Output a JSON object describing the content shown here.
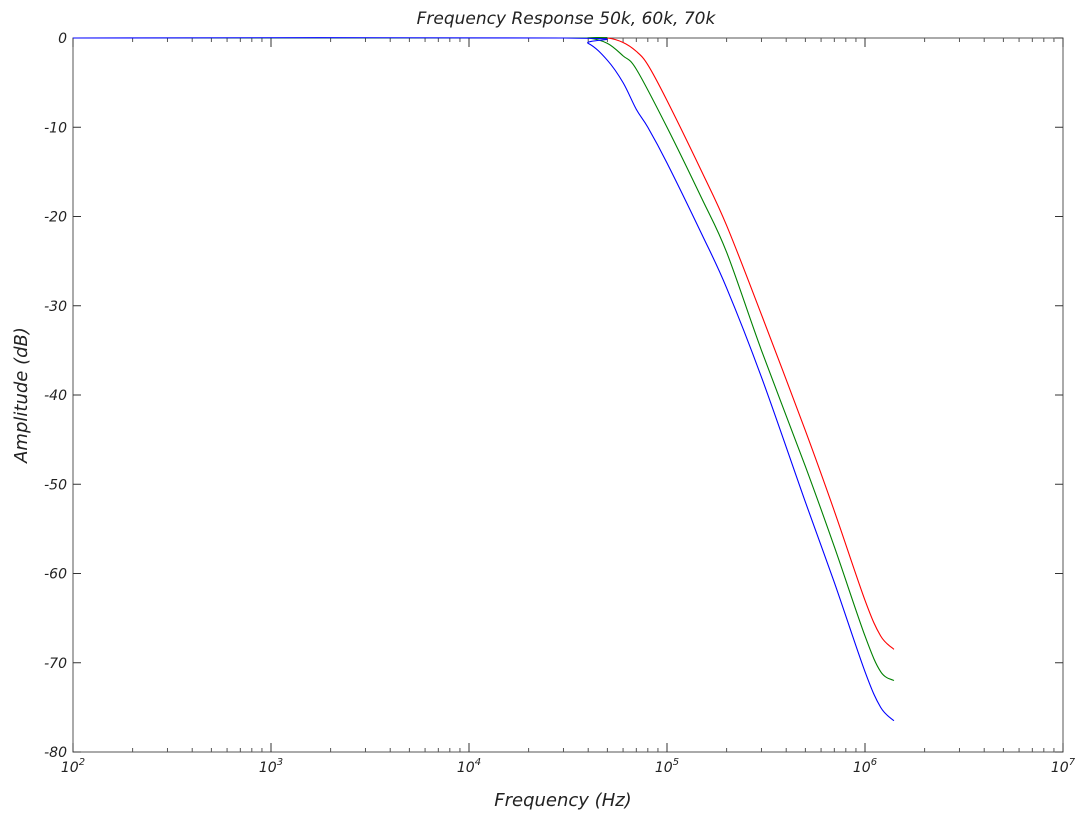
{
  "chart_data": {
    "type": "line",
    "title": "Frequency Response 50k, 60k, 70k",
    "xlabel": "Frequency (Hz)",
    "ylabel": "Amplitude (dB)",
    "x_scale": "log",
    "xlim": [
      100,
      10000000
    ],
    "ylim": [
      -80,
      0
    ],
    "x_ticks": [
      {
        "base": "10",
        "exp": "2",
        "value": 100
      },
      {
        "base": "10",
        "exp": "3",
        "value": 1000
      },
      {
        "base": "10",
        "exp": "4",
        "value": 10000
      },
      {
        "base": "10",
        "exp": "5",
        "value": 100000
      },
      {
        "base": "10",
        "exp": "6",
        "value": 1000000
      },
      {
        "base": "10",
        "exp": "7",
        "value": 10000000
      }
    ],
    "y_ticks": [
      "0",
      "-10",
      "-20",
      "-30",
      "-40",
      "-50",
      "-60",
      "-70",
      "-80"
    ],
    "grid": false,
    "legend": "none",
    "series": [
      {
        "color": "#ff0000",
        "x": [
          100,
          30000,
          40000,
          50000,
          60000,
          70000,
          80000,
          100000,
          150000,
          200000,
          300000,
          500000,
          700000,
          1000000,
          1200000,
          1400000
        ],
        "y": [
          0,
          0,
          0,
          0,
          -0.5,
          -1.5,
          -3,
          -7,
          -15,
          -21,
          -31,
          -44,
          -53,
          -63,
          -67,
          -68.5
        ]
      },
      {
        "color": "#008000",
        "x": [
          100,
          30000,
          40000,
          50000,
          60000,
          70000,
          100000,
          150000,
          200000,
          300000,
          500000,
          700000,
          1000000,
          1200000,
          1400000
        ],
        "y": [
          0,
          0,
          0,
          -0.6,
          -2,
          -3.5,
          -10,
          -18,
          -24,
          -35,
          -48,
          -57,
          -67,
          -71,
          -72
        ]
      },
      {
        "color": "#0000ff",
        "x": [
          100,
          30000,
          40000,
          50000,
          60000,
          70000,
          80000,
          100000,
          150000,
          200000,
          300000,
          500000,
          700000,
          1000000,
          1200000,
          1400000
        ],
        "y": [
          0,
          0,
          -0.6,
          -2.5,
          -5,
          -8,
          -10,
          -14,
          -22,
          -28,
          -38,
          -52,
          -61,
          -71,
          -75,
          -76.5
        ]
      }
    ]
  }
}
